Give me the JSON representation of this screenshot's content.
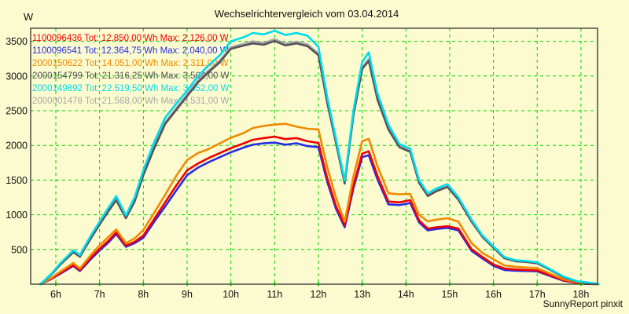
{
  "window": {
    "background": "#FBFBCF"
  },
  "header": {
    "title": "Wechselrichtervergleich vom 03.04.2014"
  },
  "footer": {
    "credit": "SunnyReport pinxit"
  },
  "chart_data": {
    "type": "line",
    "title": "Wechselrichtervergleich vom 03.04.2014",
    "ylabel": "W",
    "xlabel": "",
    "ylim": [
      0,
      3688
    ],
    "xlim": [
      5.43,
      18.38
    ],
    "grid": true,
    "grid_color": "#00D400",
    "axis_color": "#333333",
    "tick_color": "#00B400",
    "label_color": "#111111",
    "legend_position": "top-left-inside",
    "x_ticks": [
      {
        "value": 6,
        "label": "6h"
      },
      {
        "value": 7,
        "label": "7h"
      },
      {
        "value": 8,
        "label": "8h"
      },
      {
        "value": 9,
        "label": "9h"
      },
      {
        "value": 10,
        "label": "10h"
      },
      {
        "value": 11,
        "label": "11h"
      },
      {
        "value": 12,
        "label": "12h"
      },
      {
        "value": 13,
        "label": "13h"
      },
      {
        "value": 14,
        "label": "14h"
      },
      {
        "value": 15,
        "label": "15h"
      },
      {
        "value": 16,
        "label": "16h"
      },
      {
        "value": 17,
        "label": "17h"
      },
      {
        "value": 18,
        "label": "18h"
      }
    ],
    "y_ticks": [
      {
        "value": 500,
        "label": "500"
      },
      {
        "value": 1000,
        "label": "1000"
      },
      {
        "value": 1500,
        "label": "1500"
      },
      {
        "value": 2000,
        "label": "2000"
      },
      {
        "value": 2500,
        "label": "2500"
      },
      {
        "value": 3000,
        "label": "3000"
      },
      {
        "value": 3500,
        "label": "3500"
      }
    ],
    "x": [
      5.65,
      5.9,
      6.1,
      6.4,
      6.55,
      6.8,
      7.0,
      7.2,
      7.38,
      7.6,
      7.8,
      8.0,
      8.25,
      8.5,
      8.75,
      9.0,
      9.25,
      9.5,
      9.75,
      10.0,
      10.3,
      10.5,
      10.75,
      11.0,
      11.25,
      11.5,
      11.75,
      12.0,
      12.2,
      12.4,
      12.6,
      12.8,
      13.0,
      13.15,
      13.35,
      13.6,
      13.85,
      14.1,
      14.3,
      14.5,
      14.7,
      14.95,
      15.2,
      15.5,
      15.75,
      16.0,
      16.25,
      16.5,
      16.75,
      17.0,
      17.3,
      17.6,
      17.9,
      18.15,
      18.4
    ],
    "series": [
      {
        "name": "1100096436",
        "color": "#EE0000",
        "z": 2,
        "legend": "1100096436 Tot: 12.850,00 Wh Max: 2.126,00 W",
        "total_wh": "12.850,00",
        "max_w": "2.126,00",
        "values": [
          0,
          80,
          160,
          275,
          200,
          380,
          510,
          625,
          745,
          555,
          610,
          700,
          940,
          1180,
          1420,
          1640,
          1740,
          1820,
          1890,
          1960,
          2030,
          2080,
          2105,
          2126,
          2090,
          2105,
          2060,
          2035,
          1530,
          1130,
          850,
          1420,
          1880,
          1915,
          1560,
          1190,
          1180,
          1210,
          920,
          800,
          820,
          835,
          800,
          505,
          390,
          285,
          225,
          212,
          205,
          198,
          125,
          55,
          20,
          5,
          0
        ]
      },
      {
        "name": "1100096541",
        "color": "#2A2AE6",
        "z": 1,
        "legend": "1100096541 Tot: 12.364,75 Wh Max: 2.040,00 W",
        "total_wh": "12.364,75",
        "max_w": "2.040,00",
        "values": [
          0,
          75,
          150,
          262,
          190,
          360,
          485,
          600,
          722,
          538,
          590,
          668,
          900,
          1120,
          1350,
          1570,
          1680,
          1760,
          1830,
          1900,
          1970,
          2010,
          2030,
          2040,
          2010,
          2030,
          1990,
          1975,
          1480,
          1090,
          820,
          1380,
          1830,
          1860,
          1510,
          1150,
          1140,
          1170,
          890,
          775,
          795,
          812,
          775,
          480,
          370,
          265,
          205,
          195,
          190,
          185,
          115,
          50,
          18,
          3,
          0
        ]
      },
      {
        "name": "2000150622",
        "color": "#F08A00",
        "z": 3,
        "legend": "2000150622 Tot: 14.051,00 Wh Max: 2.311,00 W",
        "total_wh": "14.051,00",
        "max_w": "2.311,00",
        "values": [
          0,
          90,
          180,
          305,
          225,
          420,
          560,
          680,
          790,
          590,
          660,
          780,
          1030,
          1290,
          1560,
          1790,
          1890,
          1950,
          2030,
          2110,
          2180,
          2250,
          2280,
          2300,
          2311,
          2270,
          2240,
          2230,
          1690,
          1250,
          900,
          1550,
          2060,
          2095,
          1700,
          1310,
          1295,
          1300,
          1000,
          905,
          930,
          950,
          900,
          590,
          450,
          360,
          270,
          250,
          240,
          230,
          150,
          70,
          30,
          10,
          0
        ]
      },
      {
        "name": "2000154799",
        "color": "#585158",
        "z": 5,
        "legend": "2000154799 Tot: 21.316,25 Wh Max: 3.504,00 W",
        "total_wh": "21.316,25",
        "max_w": "3.504,00",
        "values": [
          0,
          140,
          280,
          460,
          395,
          660,
          860,
          1050,
          1210,
          950,
          1190,
          1570,
          1960,
          2310,
          2510,
          2710,
          2910,
          3060,
          3200,
          3390,
          3440,
          3470,
          3450,
          3504,
          3440,
          3470,
          3430,
          3300,
          2620,
          2040,
          1450,
          2430,
          3100,
          3220,
          2660,
          2230,
          1975,
          1905,
          1460,
          1270,
          1340,
          1400,
          1215,
          900,
          680,
          525,
          375,
          330,
          320,
          300,
          205,
          100,
          40,
          20,
          0
        ]
      },
      {
        "name": "2000149892",
        "color": "#00DCEE",
        "z": 6,
        "legend": "2000149892 Tot: 22.519,50 Wh Max: 3.652,00 W",
        "total_wh": "22.519,50",
        "max_w": "3.652,00",
        "values": [
          0,
          150,
          300,
          490,
          420,
          700,
          900,
          1100,
          1270,
          990,
          1250,
          1640,
          2050,
          2400,
          2600,
          2790,
          3000,
          3160,
          3300,
          3500,
          3560,
          3620,
          3600,
          3652,
          3590,
          3620,
          3580,
          3420,
          2700,
          2100,
          1490,
          2500,
          3200,
          3340,
          2750,
          2300,
          2020,
          1950,
          1500,
          1310,
          1380,
          1440,
          1250,
          930,
          700,
          545,
          390,
          345,
          335,
          315,
          215,
          110,
          45,
          25,
          0
        ]
      },
      {
        "name": "2000001478",
        "color": "#A8A8A8",
        "z": 4,
        "legend": "2000001478 Tot: 21.568,00 Wh Max: 3.531,00 W",
        "total_wh": "21.568,00",
        "max_w": "3.531,00",
        "values": [
          0,
          145,
          290,
          470,
          405,
          675,
          875,
          1065,
          1225,
          965,
          1205,
          1590,
          1985,
          2335,
          2535,
          2735,
          2935,
          3085,
          3225,
          3415,
          3465,
          3500,
          3475,
          3531,
          3465,
          3495,
          3455,
          3325,
          2645,
          2060,
          1470,
          2455,
          3125,
          3245,
          2685,
          2255,
          1995,
          1925,
          1480,
          1290,
          1360,
          1420,
          1235,
          915,
          690,
          535,
          382,
          336,
          326,
          306,
          210,
          105,
          42,
          22,
          5
        ]
      }
    ]
  }
}
